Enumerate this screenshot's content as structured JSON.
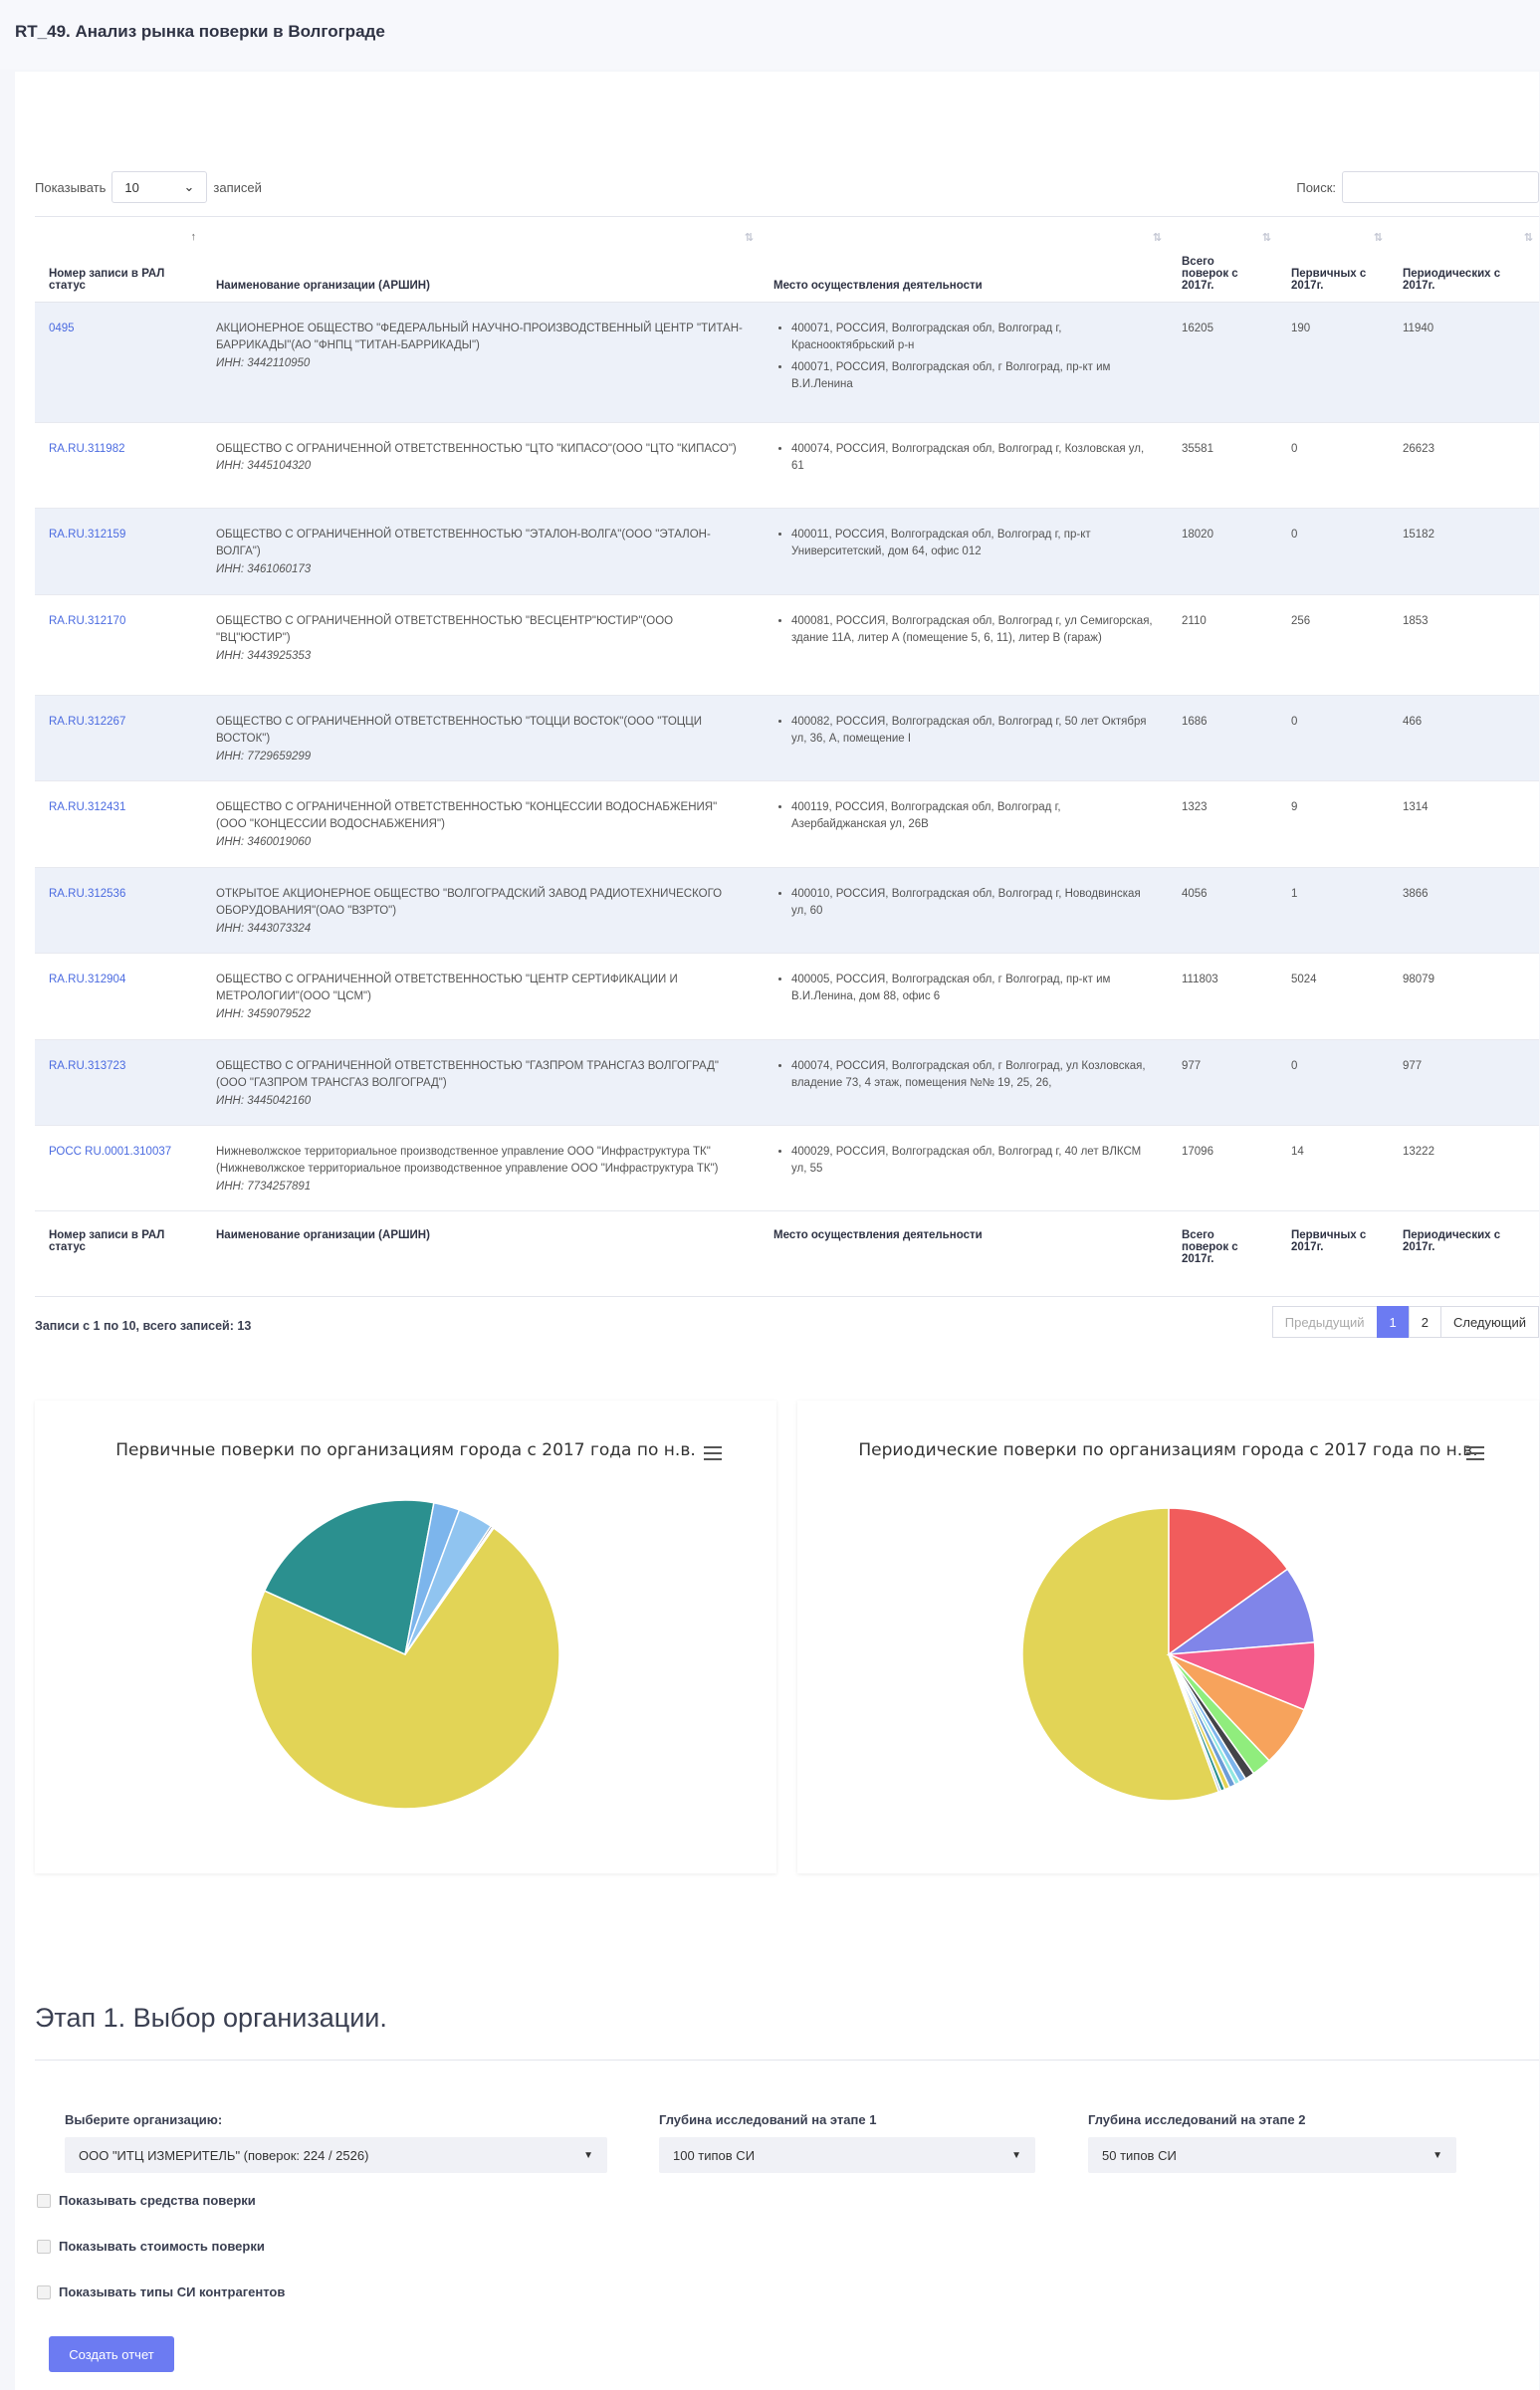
{
  "page": {
    "title": "RT_49. Анализ рынка поверки в Волгограде"
  },
  "table": {
    "length_prefix": "Показывать",
    "length_value": "10",
    "length_suffix": "записей",
    "search_label": "Поиск:",
    "columns": [
      "Номер записи в РАЛ статус",
      "Наименование организации (АРШИН)",
      "Место осуществления деятельности",
      "Всего поверок с 2017г.",
      "Первичных с 2017г.",
      "Периодических с 2017г."
    ],
    "rows": [
      {
        "id": "0495",
        "name": "АКЦИОНЕРНОЕ ОБЩЕСТВО \"ФЕДЕРАЛЬНЫЙ НАУЧНО-ПРОИЗВОДСТВЕННЫЙ ЦЕНТР \"ТИТАН-БАРРИКАДЫ\"(АО \"ФНПЦ \"ТИТАН-БАРРИКАДЫ\")",
        "inn": "ИНН: 3442110950",
        "places": [
          "400071, РОССИЯ, Волгоградская обл, Волгоград г, Краснооктябрьский р-н",
          "400071, РОССИЯ, Волгоградская обл, г Волгоград, пр-кт им В.И.Ленина"
        ],
        "total": "16205",
        "primary": "190",
        "periodic": "11940"
      },
      {
        "id": "RA.RU.311982",
        "name": "ОБЩЕСТВО С ОГРАНИЧЕННОЙ ОТВЕТСТВЕННОСТЬЮ \"ЦТО \"КИПАСО\"(ООО \"ЦТО \"КИПАСО\")",
        "inn": "ИНН: 3445104320",
        "places": [
          "400074, РОССИЯ, Волгоградская обл, Волгоград г, Козловская ул, 61"
        ],
        "total": "35581",
        "primary": "0",
        "periodic": "26623"
      },
      {
        "id": "RA.RU.312159",
        "name": "ОБЩЕСТВО С ОГРАНИЧЕННОЙ ОТВЕТСТВЕННОСТЬЮ \"ЭТАЛОН-ВОЛГА\"(ООО \"ЭТАЛОН-ВОЛГА\")",
        "inn": "ИНН: 3461060173",
        "places": [
          "400011, РОССИЯ, Волгоградская обл, Волгоград г, пр-кт Университетский, дом 64, офис 012"
        ],
        "total": "18020",
        "primary": "0",
        "periodic": "15182"
      },
      {
        "id": "RA.RU.312170",
        "name": "ОБЩЕСТВО С ОГРАНИЧЕННОЙ ОТВЕТСТВЕННОСТЬЮ \"ВЕСЦЕНТР\"ЮСТИР\"(ООО \"ВЦ\"ЮСТИР\")",
        "inn": "ИНН: 3443925353",
        "places": [
          "400081, РОССИЯ, Волгоградская обл, Волгоград г, ул Семигорская, здание 11А, литер А (помещение 5, 6, 11), литер В (гараж)"
        ],
        "total": "2110",
        "primary": "256",
        "periodic": "1853"
      },
      {
        "id": "RA.RU.312267",
        "name": "ОБЩЕСТВО С ОГРАНИЧЕННОЙ ОТВЕТСТВЕННОСТЬЮ \"ТОЦЦИ ВОСТОК\"(ООО \"ТОЦЦИ ВОСТОК\")",
        "inn": "ИНН: 7729659299",
        "places": [
          "400082, РОССИЯ, Волгоградская обл, Волгоград г, 50 лет Октября ул, 36, А, помещение I"
        ],
        "total": "1686",
        "primary": "0",
        "periodic": "466"
      },
      {
        "id": "RA.RU.312431",
        "name": "ОБЩЕСТВО С ОГРАНИЧЕННОЙ ОТВЕТСТВЕННОСТЬЮ \"КОНЦЕССИИ ВОДОСНАБЖЕНИЯ\"(ООО \"КОНЦЕССИИ ВОДОСНАБЖЕНИЯ\")",
        "inn": "ИНН: 3460019060",
        "places": [
          "400119, РОССИЯ, Волгоградская обл, Волгоград г, Азербайджанская ул, 26В"
        ],
        "total": "1323",
        "primary": "9",
        "periodic": "1314"
      },
      {
        "id": "RA.RU.312536",
        "name": "ОТКРЫТОЕ АКЦИОНЕРНОЕ ОБЩЕСТВО \"ВОЛГОГРАДСКИЙ ЗАВОД РАДИОТЕХНИЧЕСКОГО ОБОРУДОВАНИЯ\"(ОАО \"ВЗРТО\")",
        "inn": "ИНН: 3443073324",
        "places": [
          "400010, РОССИЯ, Волгоградская обл, Волгоград г, Новодвинская ул, 60"
        ],
        "total": "4056",
        "primary": "1",
        "periodic": "3866"
      },
      {
        "id": "RA.RU.312904",
        "name": "ОБЩЕСТВО С ОГРАНИЧЕННОЙ ОТВЕТСТВЕННОСТЬЮ \"ЦЕНТР СЕРТИФИКАЦИИ И МЕТРОЛОГИИ\"(ООО \"ЦСМ\")",
        "inn": "ИНН: 3459079522",
        "places": [
          "400005, РОССИЯ, Волгоградская обл, г Волгоград, пр-кт им В.И.Ленина, дом 88, офис 6"
        ],
        "total": "111803",
        "primary": "5024",
        "periodic": "98079"
      },
      {
        "id": "RA.RU.313723",
        "name": "ОБЩЕСТВО С ОГРАНИЧЕННОЙ ОТВЕТСТВЕННОСТЬЮ \"ГАЗПРОМ ТРАНСГАЗ ВОЛГОГРАД\"(ООО \"ГАЗПРОМ ТРАНСГАЗ ВОЛГОГРАД\")",
        "inn": "ИНН: 3445042160",
        "places": [
          "400074, РОССИЯ, Волгоградская обл, г Волгоград, ул Козловская, владение 73, 4 этаж, помещения №№ 19, 25, 26,"
        ],
        "total": "977",
        "primary": "0",
        "periodic": "977"
      },
      {
        "id": "РОСС RU.0001.310037",
        "name": "Нижневолжское территориальное производственное управление ООО \"Инфраструктура ТК\"(Нижневолжское территориальное производственное управление ООО \"Инфраструктура ТК\")",
        "inn": "ИНН: 7734257891",
        "places": [
          "400029, РОССИЯ, Волгоградская обл, Волгоград г, 40 лет ВЛКСМ ул, 55"
        ],
        "total": "17096",
        "primary": "14",
        "periodic": "13222"
      }
    ],
    "info": "Записи с 1 по 10, всего записей: 13",
    "pagination": {
      "prev": "Предыдущий",
      "pages": [
        "1",
        "2"
      ],
      "next": "Следующий"
    }
  },
  "charts": {
    "left_title": "Первичные поверки по организациям города с 2017 года по н.в.",
    "right_title": "Периодические поверки по организациям города с 2017 года по н.в."
  },
  "chart_data": [
    {
      "type": "pie",
      "title": "Первичные поверки по организациям города с 2017 года по н.в.",
      "values": [
        5024,
        1480,
        190,
        256,
        14,
        9,
        1
      ],
      "colors": [
        "#e2d456",
        "#2b908f",
        "#7cb5ec",
        "#90c4f0",
        "#434348",
        "#f7a35c",
        "#8085e9"
      ]
    },
    {
      "type": "pie",
      "title": "Периодические поверки по организациям города с 2017 года по н.в.",
      "values": [
        98079,
        26623,
        15182,
        13222,
        11940,
        3866,
        1853,
        1314,
        977,
        1200,
        1000,
        800,
        466
      ],
      "colors": [
        "#e2d456",
        "#f15c5c",
        "#8085e9",
        "#f45b8a",
        "#f7a35c",
        "#90ed7d",
        "#434348",
        "#7cb5ec",
        "#91e8e1",
        "#6c9dd8",
        "#e4d354",
        "#2b908f",
        "#b0c4de"
      ]
    }
  ],
  "stage": {
    "title": "Этап 1. Выбор организации.",
    "org_label": "Выберите организацию:",
    "org_value": "ООО \"ИТЦ ИЗМЕРИТЕЛЬ\" (поверок: 224 / 2526)",
    "depth1_label": "Глубина исследований на этапе 1",
    "depth1_value": "100 типов СИ",
    "depth2_label": "Глубина исследований на этапе 2",
    "depth2_value": "50 типов СИ",
    "checkboxes": [
      "Показывать средства поверки",
      "Показывать стоимость поверки",
      "Показывать типы СИ контрагентов"
    ],
    "submit_label": "Создать отчет"
  }
}
